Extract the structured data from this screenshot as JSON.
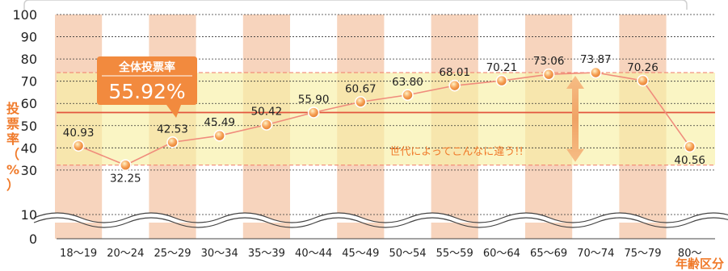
{
  "chart_data": {
    "type": "line",
    "categories": [
      "18〜19",
      "20〜24",
      "25〜29",
      "30〜34",
      "35〜39",
      "40〜44",
      "45〜49",
      "50〜54",
      "55〜59",
      "60〜64",
      "65〜69",
      "70〜74",
      "75〜79",
      "80〜"
    ],
    "values": [
      40.93,
      32.25,
      42.53,
      45.49,
      50.42,
      55.9,
      60.67,
      63.8,
      68.01,
      70.21,
      73.06,
      73.87,
      70.26,
      40.56
    ],
    "value_labels": [
      "40.93",
      "32.25",
      "42.53",
      "45.49",
      "50.42",
      "55.90",
      "60.67",
      "63.80",
      "68.01",
      "70.21",
      "73.06",
      "73.87",
      "70.26",
      "40.56"
    ],
    "ylabel": "投票率（%）",
    "xlabel": "年齢区分",
    "yticks": [
      0,
      10,
      30,
      40,
      50,
      60,
      70,
      80,
      90,
      100
    ],
    "ylim": [
      0,
      100
    ],
    "axis_break": "between 0 and 10",
    "overall_rate": {
      "title": "全体投票率",
      "value": 55.92,
      "value_label": "55.92%"
    },
    "range_band": {
      "min": 32.25,
      "max": 73.87
    },
    "annotation": "世代によってこんなに違う!!",
    "grid": true,
    "colors": {
      "line": "#f08c7c",
      "marker": "#f5a15c",
      "stripe": "#f6cdb2",
      "band": "#f7f0a4",
      "overall_line": "#e2553e",
      "callout": "#f28a3e",
      "axis_label": "#f07a2a",
      "arrow": "#f3b27a"
    }
  }
}
